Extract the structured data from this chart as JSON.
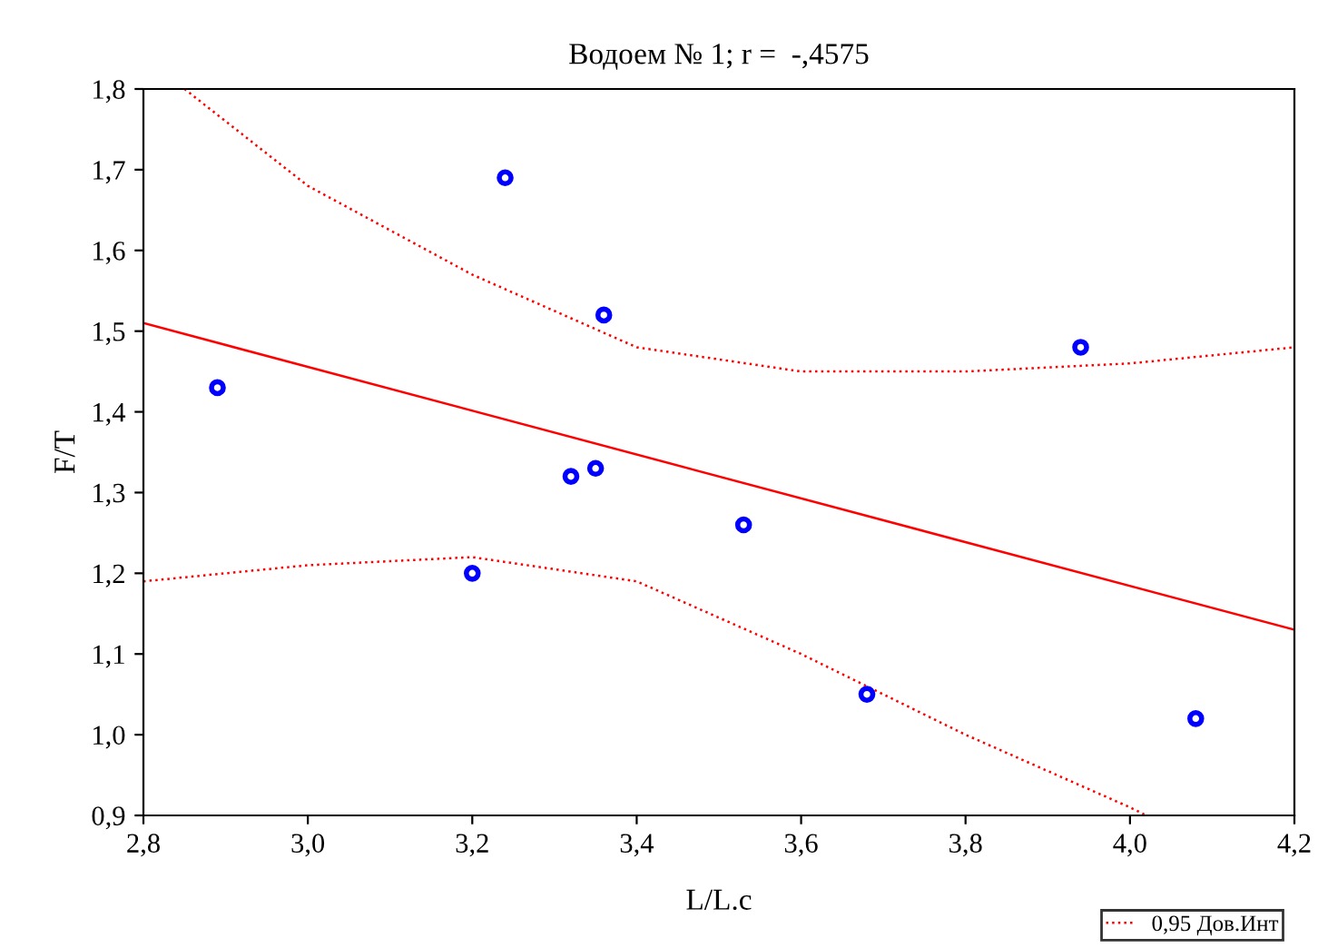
{
  "chart_data": {
    "type": "scatter",
    "title": "Водоем № 1; r =  -,4575",
    "xlabel": "L/L.c",
    "ylabel": "F/T",
    "xlim": [
      2.8,
      4.2
    ],
    "ylim": [
      0.9,
      1.8
    ],
    "xticks": [
      {
        "value": 2.8,
        "label": "2,8"
      },
      {
        "value": 3.0,
        "label": "3,0"
      },
      {
        "value": 3.2,
        "label": "3,2"
      },
      {
        "value": 3.4,
        "label": "3,4"
      },
      {
        "value": 3.6,
        "label": "3,6"
      },
      {
        "value": 3.8,
        "label": "3,8"
      },
      {
        "value": 4.0,
        "label": "4,0"
      },
      {
        "value": 4.2,
        "label": "4,2"
      }
    ],
    "yticks": [
      {
        "value": 0.9,
        "label": "0,9"
      },
      {
        "value": 1.0,
        "label": "1,0"
      },
      {
        "value": 1.1,
        "label": "1,1"
      },
      {
        "value": 1.2,
        "label": "1,2"
      },
      {
        "value": 1.3,
        "label": "1,3"
      },
      {
        "value": 1.4,
        "label": "1,4"
      },
      {
        "value": 1.5,
        "label": "1,5"
      },
      {
        "value": 1.6,
        "label": "1,6"
      },
      {
        "value": 1.7,
        "label": "1,7"
      },
      {
        "value": 1.8,
        "label": "1,8"
      }
    ],
    "grid": false,
    "legend": "bottom right",
    "series": [
      {
        "color": "#0000ff",
        "marker": "circle",
        "x": [
          2.89,
          3.24,
          3.36,
          3.2,
          3.32,
          3.35,
          3.53,
          3.68,
          3.94,
          4.08
        ],
        "values": [
          1.43,
          1.69,
          1.52,
          1.2,
          1.32,
          1.33,
          1.26,
          1.05,
          1.48,
          1.02
        ]
      },
      {
        "type": "line",
        "color": "#ff0000",
        "line_style": "solid",
        "marker": "none",
        "x": [
          2.8,
          4.2
        ],
        "values": [
          1.51,
          1.13
        ]
      },
      {
        "type": "line",
        "color": "#ff0000",
        "line_style": "dotted",
        "marker": "none",
        "name": "0,95 Дов.Инт",
        "x": [
          2.85,
          3.0,
          3.2,
          3.4,
          3.6,
          3.8,
          4.0,
          4.2
        ],
        "values": [
          1.8,
          1.68,
          1.57,
          1.48,
          1.45,
          1.45,
          1.46,
          1.48
        ]
      },
      {
        "type": "line",
        "color": "#ff0000",
        "line_style": "dotted",
        "marker": "none",
        "x": [
          2.8,
          3.0,
          3.2,
          3.4,
          3.6,
          3.8,
          4.0,
          4.02
        ],
        "values": [
          1.19,
          1.21,
          1.22,
          1.19,
          1.1,
          1.0,
          0.91,
          0.9
        ]
      }
    ]
  }
}
